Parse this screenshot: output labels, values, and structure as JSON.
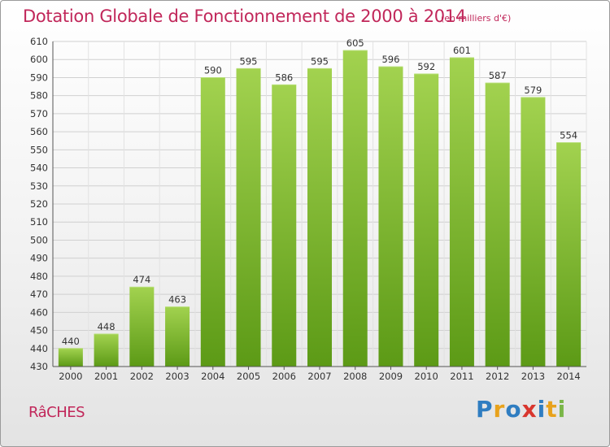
{
  "header": {
    "title": "Dotation Globale de Fonctionnement de 2000 à 2014",
    "subtitle": "(en milliers d'€)"
  },
  "footer": {
    "commune": "RâCHES",
    "logo": {
      "letters": [
        "P",
        "r",
        "o",
        "x",
        "i",
        "t",
        "i"
      ],
      "colors": [
        "#2f7dc1",
        "#e8a21c",
        "#2f7dc1",
        "#d8362e",
        "#2f7dc1",
        "#e8a21c",
        "#7ab648"
      ]
    }
  },
  "chart_data": {
    "type": "bar",
    "title": "Dotation Globale de Fonctionnement de 2000 à 2014",
    "subtitle": "(en milliers d'€)",
    "categories": [
      "2000",
      "2001",
      "2002",
      "2003",
      "2004",
      "2005",
      "2006",
      "2007",
      "2008",
      "2009",
      "2010",
      "2011",
      "2012",
      "2013",
      "2014"
    ],
    "values": [
      440,
      448,
      474,
      463,
      590,
      595,
      586,
      595,
      605,
      596,
      592,
      601,
      587,
      579,
      554
    ],
    "ylim": [
      430,
      610
    ],
    "yticks": [
      430,
      440,
      450,
      460,
      470,
      480,
      490,
      500,
      510,
      520,
      530,
      540,
      550,
      560,
      570,
      580,
      590,
      600,
      610
    ],
    "xlabel": "",
    "ylabel": "",
    "grid": true,
    "bar_color": "#7cb82f"
  }
}
